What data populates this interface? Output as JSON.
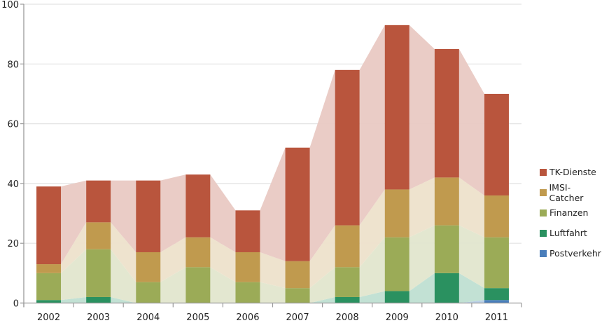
{
  "chart_data": {
    "type": "bar",
    "stacked": true,
    "title": "",
    "xlabel": "",
    "ylabel": "",
    "ylim": [
      0,
      100
    ],
    "yticks": [
      0,
      20,
      40,
      60,
      80,
      100
    ],
    "ytick_labels": [
      "0",
      "20",
      "40",
      "60",
      "80",
      "100"
    ],
    "grid": true,
    "legend_position": "right",
    "categories": [
      "2002",
      "2003",
      "2004",
      "2005",
      "2006",
      "2007",
      "2008",
      "2009",
      "2010",
      "2011"
    ],
    "series": [
      {
        "name": "Postverkehr",
        "color": "#4a7ebb",
        "area_color": "#b6cde6",
        "values": [
          0,
          0,
          0,
          0,
          0,
          0,
          0,
          0,
          0,
          1
        ]
      },
      {
        "name": "Luftfahrt",
        "color": "#2a9160",
        "area_color": "#bfdfd2",
        "values": [
          1,
          2,
          0,
          0,
          0,
          0,
          2,
          4,
          10,
          4
        ]
      },
      {
        "name": "Finanzen",
        "color": "#9bab57",
        "area_color": "#e1e6cd",
        "values": [
          9,
          16,
          7,
          12,
          7,
          5,
          10,
          18,
          16,
          17
        ]
      },
      {
        "name": "IMSI-Catcher",
        "color": "#c09a4e",
        "area_color": "#ede2cb",
        "values": [
          3,
          9,
          10,
          10,
          10,
          9,
          14,
          16,
          16,
          14
        ]
      },
      {
        "name": "TK-Dienste",
        "color": "#b9553d",
        "area_color": "#e9c9c3",
        "values": [
          26,
          14,
          24,
          21,
          14,
          38,
          52,
          55,
          43,
          34
        ]
      }
    ],
    "totals": [
      39,
      41,
      41,
      43,
      31,
      52,
      78,
      93,
      85,
      70
    ],
    "legend_order": [
      "TK-Dienste",
      "IMSI-Catcher",
      "Finanzen",
      "Luftfahrt",
      "Postverkehr"
    ]
  }
}
